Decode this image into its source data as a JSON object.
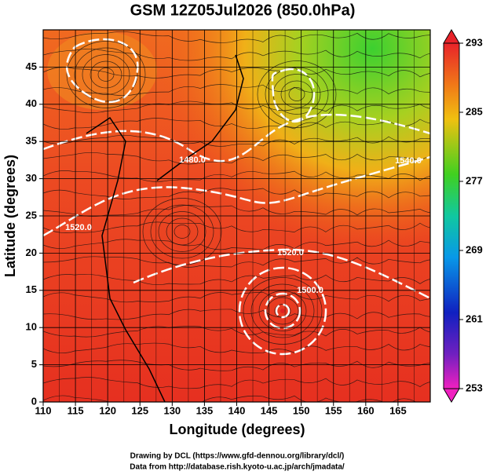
{
  "title": "GSM 12Z05Jul2026 (850.0hPa)",
  "x_axis": {
    "label": "Longitude (degrees)",
    "lim": [
      110,
      170
    ],
    "ticks": [
      110,
      115,
      120,
      125,
      130,
      135,
      140,
      145,
      150,
      155,
      160,
      165
    ]
  },
  "y_axis": {
    "label": "Latitude  (degrees)",
    "lim": [
      0,
      50
    ],
    "ticks": [
      0,
      5,
      10,
      15,
      20,
      25,
      30,
      35,
      40,
      45
    ]
  },
  "colorbar": {
    "lim": [
      253,
      293
    ],
    "ticks": [
      253,
      261,
      269,
      277,
      285,
      293
    ]
  },
  "contour_labels": [
    "1520.0",
    "1480.0",
    "1520.0",
    "1540.0",
    "1500.0"
  ],
  "credits": [
    "Drawing by DCL (https://www.gfd-dennou.org/library/dcl/)",
    "Data from http://database.rish.kyoto-u.ac.jp/arch/jmadata/"
  ]
}
